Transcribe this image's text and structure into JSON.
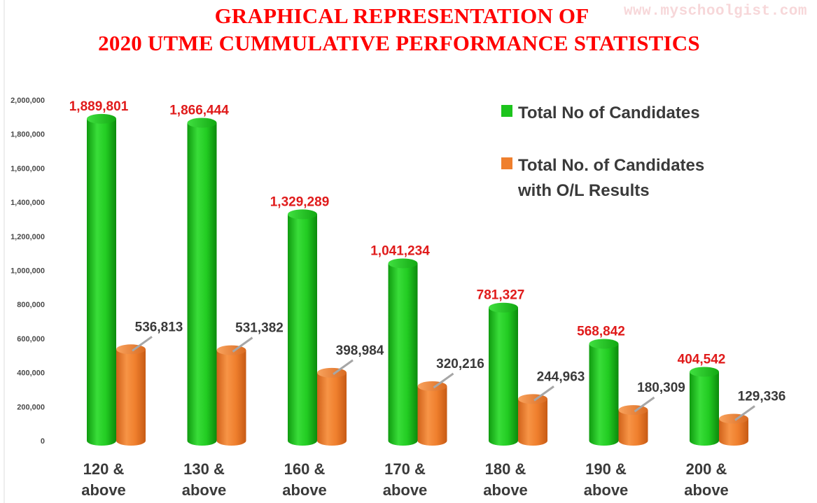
{
  "page": {
    "title_line1": "GRAPHICAL REPRESENTATION OF",
    "title_line2": "2020 UTME CUMMULATIVE PERFORMANCE STATISTICS",
    "watermark": "www.myschoolgist.com"
  },
  "colors": {
    "title": "#ff0000",
    "green": "#1dc41d",
    "orange": "#ef7f2d",
    "green_label": "#e01b1b",
    "orange_label": "#3a3a3a"
  },
  "chart_data": {
    "type": "bar",
    "title": "GRAPHICAL REPRESENTATION OF 2020 UTME CUMMULATIVE PERFORMANCE STATISTICS",
    "categories": [
      [
        "120  &",
        "above"
      ],
      [
        "130  &",
        "above"
      ],
      [
        "160  &",
        "above"
      ],
      [
        "170 &",
        "above"
      ],
      [
        "180 &",
        "above"
      ],
      [
        "190 &",
        "above"
      ],
      [
        "200 &",
        "above"
      ]
    ],
    "series": [
      {
        "name": "Total No of Candidates",
        "color": "#1dc41d",
        "values": [
          1889801,
          1866444,
          1329289,
          1041234,
          781327,
          568842,
          404542
        ],
        "labels": [
          "1,889,801",
          "1,866,444",
          "1,329,289",
          "1,041,234",
          "781,327",
          "568,842",
          "404,542"
        ]
      },
      {
        "name_lines": [
          "Total No. of Candidates",
          "with O/L Results"
        ],
        "color": "#ef7f2d",
        "values": [
          536813,
          531382,
          398984,
          320216,
          244963,
          180309,
          129336
        ],
        "labels": [
          "536,813",
          "531,382",
          "398,984",
          "320,216",
          "244,963",
          "180,309",
          "129,336"
        ]
      }
    ],
    "ylim": [
      0,
      2000000
    ],
    "yticks": [
      0,
      200000,
      400000,
      600000,
      800000,
      1000000,
      1200000,
      1400000,
      1600000,
      1800000,
      2000000
    ],
    "ytick_labels": [
      "0",
      "200,000",
      "400,000",
      "600,000",
      "800,000",
      "1,000,000",
      "1,200,000",
      "1,400,000",
      "1,600,000",
      "1,800,000",
      "2,000,000"
    ],
    "grid": false,
    "legend": "top-right"
  }
}
